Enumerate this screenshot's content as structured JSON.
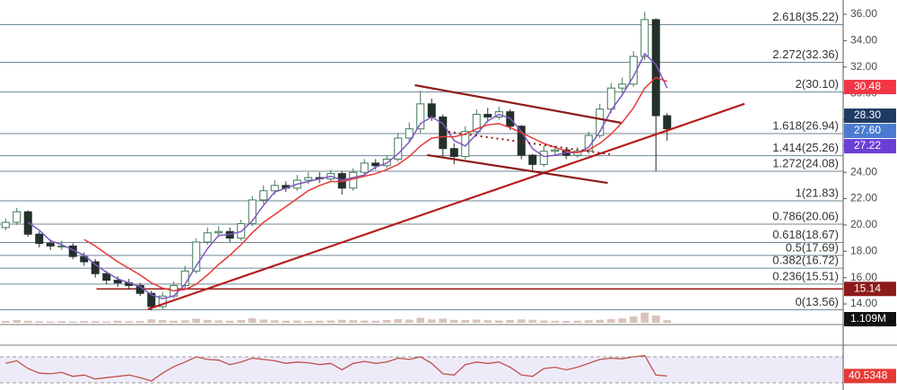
{
  "chart_data": {
    "type": "candlestick",
    "xlim": [
      -0.5,
      74.7
    ],
    "ylim": [
      12.57,
      37.09
    ],
    "yticks": [
      {
        "value": 14,
        "label": "14.00"
      },
      {
        "value": 16,
        "label": "16.00"
      },
      {
        "value": 18,
        "label": "18.00"
      },
      {
        "value": 20,
        "label": "20.00"
      },
      {
        "value": 22,
        "label": "22.00"
      },
      {
        "value": 24,
        "label": "24.00"
      },
      {
        "value": 26,
        "label": "26.00"
      },
      {
        "value": 28,
        "label": "28.00"
      },
      {
        "value": 30,
        "label": "30.00"
      },
      {
        "value": 32,
        "label": "32.00"
      },
      {
        "value": 34,
        "label": "34.00"
      },
      {
        "value": 36,
        "label": "36.00"
      }
    ],
    "open": [
      19.8,
      20.2,
      21.0,
      19.3,
      18.6,
      18.4,
      18.4,
      17.6,
      17.2,
      16.3,
      15.8,
      15.6,
      15.4,
      14.8,
      13.8,
      14.6,
      15.4,
      16.5,
      18.7,
      19.4,
      19.5,
      19.0,
      20.1,
      21.9,
      22.6,
      23.0,
      22.8,
      23.4,
      23.6,
      23.5,
      23.9,
      22.8,
      24.0,
      24.7,
      24.5,
      25.0,
      26.6,
      27.3,
      29.2,
      28.2,
      25.8,
      25.2,
      27.1,
      28.4,
      28.2,
      28.6,
      27.5,
      25.3,
      24.6,
      25.6,
      25.7,
      25.3,
      25.6,
      26.8,
      28.8,
      30.4,
      30.7,
      32.8,
      35.6,
      28.3
    ],
    "high": [
      20.5,
      21.3,
      21.1,
      19.5,
      18.9,
      18.8,
      18.6,
      17.9,
      17.4,
      16.5,
      16.1,
      15.9,
      15.6,
      15.0,
      14.9,
      15.7,
      16.9,
      19.0,
      19.8,
      19.9,
      19.8,
      20.4,
      22.2,
      23.0,
      23.4,
      23.3,
      23.8,
      24.0,
      24.0,
      24.2,
      24.1,
      24.3,
      25.0,
      25.0,
      25.3,
      27.0,
      27.8,
      30.2,
      29.6,
      28.4,
      26.2,
      27.5,
      28.8,
      28.9,
      29.0,
      28.8,
      27.6,
      25.4,
      26.0,
      26.0,
      25.9,
      25.9,
      27.1,
      29.2,
      30.8,
      31.2,
      33.2,
      36.2,
      35.7,
      28.5
    ],
    "low": [
      19.6,
      20.0,
      19.1,
      18.3,
      18.1,
      18.1,
      17.4,
      16.9,
      16.0,
      15.5,
      15.3,
      15.1,
      14.6,
      13.5,
      13.6,
      14.4,
      15.2,
      16.3,
      18.5,
      19.1,
      18.7,
      18.8,
      19.9,
      21.6,
      22.3,
      22.5,
      22.6,
      23.1,
      23.2,
      23.3,
      22.3,
      22.6,
      23.8,
      24.2,
      24.3,
      24.8,
      26.3,
      27.0,
      27.9,
      25.2,
      24.6,
      25.0,
      26.8,
      27.8,
      28.0,
      27.2,
      25.0,
      24.1,
      24.4,
      25.3,
      25.0,
      25.1,
      25.4,
      26.6,
      28.5,
      30.0,
      30.5,
      32.5,
      24.1,
      26.4
    ],
    "close": [
      20.2,
      21.0,
      19.3,
      18.6,
      18.4,
      18.4,
      17.6,
      17.2,
      16.3,
      15.8,
      15.6,
      15.4,
      14.8,
      13.8,
      14.6,
      15.4,
      16.5,
      18.7,
      19.4,
      19.5,
      19.0,
      20.1,
      21.9,
      22.6,
      23.0,
      22.8,
      23.4,
      23.6,
      23.5,
      23.9,
      22.8,
      24.0,
      24.7,
      24.5,
      25.0,
      26.6,
      27.3,
      29.2,
      28.2,
      25.8,
      25.2,
      27.1,
      28.4,
      28.2,
      28.6,
      27.5,
      25.3,
      24.6,
      25.6,
      25.7,
      25.3,
      25.6,
      26.8,
      28.8,
      30.4,
      30.7,
      32.8,
      35.6,
      28.3,
      27.3
    ],
    "up_color": "#3d7a55",
    "down_color": "#23302b",
    "moving_averages": [
      {
        "color": "#7e57c2",
        "values": [
          null,
          null,
          20.2,
          19.6,
          18.8,
          18.5,
          18.1,
          17.7,
          17.0,
          16.4,
          15.9,
          15.6,
          15.3,
          14.7,
          14.4,
          14.6,
          15.5,
          16.9,
          18.2,
          19.2,
          19.3,
          19.5,
          20.3,
          21.5,
          22.5,
          22.8,
          23.1,
          23.3,
          23.5,
          23.7,
          23.4,
          23.6,
          23.8,
          24.4,
          24.7,
          25.4,
          26.3,
          27.7,
          28.2,
          27.7,
          26.4,
          26.0,
          26.9,
          27.9,
          28.4,
          28.1,
          27.1,
          25.8,
          25.2,
          25.3,
          25.5,
          25.5,
          25.9,
          27.1,
          28.7,
          29.9,
          31.3,
          33.0,
          32.2,
          30.4
        ]
      },
      {
        "color": "#e53935",
        "values": [
          null,
          null,
          null,
          null,
          null,
          null,
          null,
          18.9,
          18.4,
          17.8,
          17.2,
          16.7,
          16.2,
          15.6,
          15.2,
          15.0,
          15.1,
          15.5,
          16.2,
          17.0,
          17.7,
          18.5,
          19.4,
          20.2,
          20.8,
          21.4,
          22.0,
          22.6,
          23.0,
          23.3,
          23.3,
          23.5,
          23.7,
          23.9,
          24.2,
          24.6,
          25.2,
          26.0,
          26.6,
          26.7,
          26.7,
          26.9,
          27.3,
          27.6,
          27.7,
          27.4,
          27.0,
          26.6,
          26.2,
          25.9,
          25.6,
          25.5,
          25.7,
          26.2,
          26.9,
          27.8,
          28.9,
          30.4,
          31.2,
          30.9
        ]
      }
    ],
    "fib_color": "#6f8795",
    "fib_levels": [
      {
        "value": 35.22,
        "label": "2.618(35.22)"
      },
      {
        "value": 32.36,
        "label": "2.272(32.36)"
      },
      {
        "value": 30.1,
        "label": "2(30.10)"
      },
      {
        "value": 26.94,
        "label": "1.618(26.94)"
      },
      {
        "value": 25.26,
        "label": "1.414(25.26)"
      },
      {
        "value": 24.08,
        "label": "1.272(24.08)"
      },
      {
        "value": 21.83,
        "label": "1(21.83)"
      },
      {
        "value": 20.06,
        "label": "0.786(20.06)"
      },
      {
        "value": 18.67,
        "label": "0.618(18.67)"
      },
      {
        "value": 17.69,
        "label": "0.5(17.69)"
      },
      {
        "value": 16.72,
        "label": "0.382(16.72)"
      },
      {
        "value": 15.51,
        "label": "0.236(15.51)"
      },
      {
        "value": 13.56,
        "label": "0(13.56)"
      }
    ],
    "trend_lines": [
      {
        "color": "#b71c1c",
        "points": [
          [
            12.7,
            13.6
          ],
          [
            65.9,
            29.2
          ]
        ]
      },
      {
        "color": "#8e1b1b",
        "points": [
          [
            36.5,
            30.62
          ],
          [
            54.9,
            27.76
          ]
        ]
      },
      {
        "color": "#8e1b1b",
        "points": [
          [
            37.6,
            25.31
          ],
          [
            53.7,
            23.19
          ]
        ]
      },
      {
        "color": "#8e1b1b",
        "dashed": true,
        "points": [
          [
            39.5,
            27.08
          ],
          [
            53.9,
            25.37
          ]
        ]
      }
    ],
    "horizontal_lines": [
      {
        "value": 15.14,
        "color": "#9b1b1b",
        "from": 8.1
      }
    ],
    "price_labels": [
      {
        "value": 30.48,
        "label": "30.48",
        "color": "#f23645"
      },
      {
        "value": 28.3,
        "label": "28.30",
        "color": "#1f3b63"
      },
      {
        "value": 27.6,
        "label": "27.60",
        "color": "#4a7bd0"
      },
      {
        "value": 27.22,
        "label": "27.22",
        "color": "#6a3fd6"
      },
      {
        "value": 15.14,
        "label": "15.14",
        "color": "#8e1b1b"
      }
    ],
    "volume": {
      "values": [
        0.8,
        1.2,
        0.9,
        0.7,
        0.6,
        0.7,
        0.6,
        0.8,
        0.7,
        0.6,
        0.9,
        0.7,
        0.8,
        1.5,
        1.2,
        0.9,
        1.1,
        1.8,
        1.3,
        1.0,
        0.9,
        1.2,
        2.0,
        1.4,
        1.1,
        0.9,
        1.0,
        0.8,
        0.9,
        1.0,
        1.3,
        1.1,
        1.0,
        0.9,
        1.2,
        1.6,
        1.4,
        2.2,
        1.5,
        1.8,
        1.3,
        1.2,
        1.4,
        1.1,
        1.0,
        1.2,
        1.5,
        1.3,
        1.0,
        0.9,
        0.8,
        0.9,
        1.1,
        1.3,
        1.6,
        1.9,
        2.8,
        4.5,
        3.2,
        1.109
      ],
      "ylim": [
        0,
        12
      ],
      "color": "#d9c2bb",
      "last_label": {
        "value": 1.109,
        "label": "1.109M"
      }
    },
    "rsi": {
      "values": [
        60,
        64,
        52,
        45,
        44,
        46,
        40,
        42,
        36,
        38,
        40,
        42,
        38,
        33,
        45,
        55,
        62,
        70,
        66,
        65,
        58,
        62,
        68,
        66,
        64,
        60,
        62,
        61,
        58,
        60,
        50,
        60,
        63,
        60,
        62,
        68,
        66,
        70,
        60,
        44,
        42,
        58,
        62,
        60,
        62,
        54,
        42,
        40,
        52,
        54,
        50,
        54,
        60,
        66,
        68,
        67,
        70,
        72,
        42,
        40.5348
      ],
      "ylim": [
        19,
        88
      ],
      "bands": [
        30,
        70
      ],
      "color": "#c0504d",
      "band_color": "#eeebf8",
      "label_color": "#e53935"
    }
  }
}
